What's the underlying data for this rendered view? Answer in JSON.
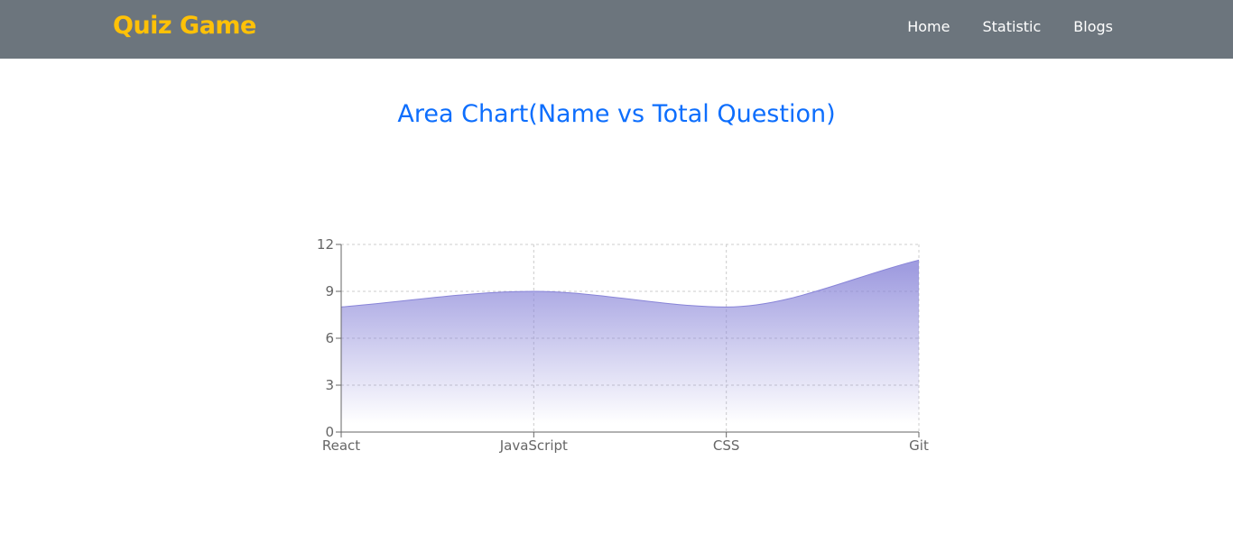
{
  "navbar": {
    "brand": "Quiz Game",
    "links": [
      "Home",
      "Statistic",
      "Blogs"
    ]
  },
  "colors": {
    "navbar_bg": "#6c757d",
    "brand": "#ffc107",
    "title": "#0d6efd",
    "area_stroke": "#8884d8",
    "area_fill": "#8884d8"
  },
  "chart_data": {
    "type": "area",
    "title": "Area Chart(Name vs Total Question)",
    "categories": [
      "React",
      "JavaScript",
      "CSS",
      "Git"
    ],
    "series": [
      {
        "values": [
          8,
          9,
          8,
          11
        ]
      }
    ],
    "ylim": [
      0,
      12
    ],
    "yticks": [
      0,
      3,
      6,
      9,
      12
    ],
    "grid": true,
    "curve": "monotone"
  }
}
